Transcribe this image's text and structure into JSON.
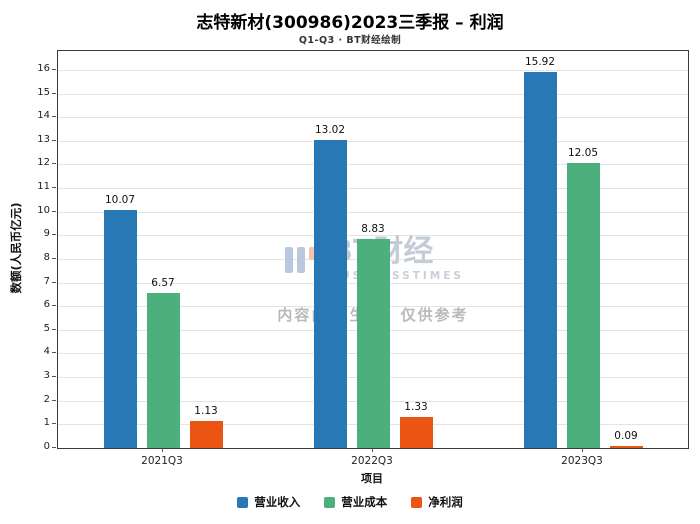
{
  "watermark": {
    "brand": "BT财经",
    "brand_sub": "BUSINESSTIMES",
    "disclaimer": "内容由AI生成，仅供参考"
  },
  "chart_data": {
    "type": "bar",
    "title": "志特新材(300986)2023三季报 – 利润",
    "subtitle": "Q1-Q3 · BT财经绘制",
    "categories": [
      "2021Q3",
      "2022Q3",
      "2023Q3"
    ],
    "series": [
      {
        "name": "营业收入",
        "color": "#2878b5",
        "values": [
          10.07,
          13.02,
          15.92
        ]
      },
      {
        "name": "营业成本",
        "color": "#4caf7e",
        "values": [
          6.57,
          8.83,
          12.05
        ]
      },
      {
        "name": "净利润",
        "color": "#ea5514",
        "values": [
          1.13,
          1.33,
          0.09
        ]
      }
    ],
    "xlabel": "项目",
    "ylabel": "数额(人民币亿元)",
    "ylim": [
      0,
      16
    ],
    "ytick_step": 1,
    "grid": true,
    "legend_position": "bottom",
    "bar_value_labels": true
  }
}
